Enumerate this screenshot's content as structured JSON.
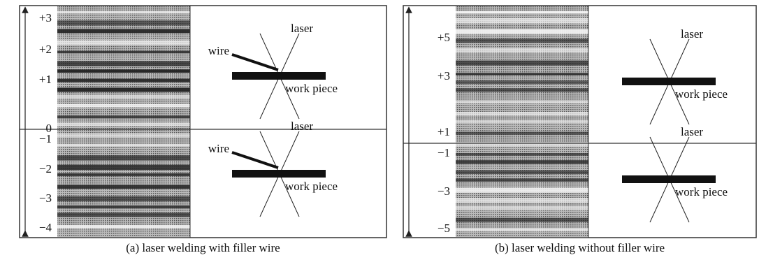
{
  "panels": [
    {
      "caption": "(a)  laser welding with filler wire",
      "ticks": [
        "+3",
        "+2",
        "+1",
        "0",
        "−1",
        "−2",
        "−3",
        "−4"
      ],
      "diagrams": [
        {
          "laser": "laser",
          "wire": "wire",
          "workpiece": "work piece"
        },
        {
          "laser": "laser",
          "wire": "wire",
          "workpiece": "work piece"
        }
      ]
    },
    {
      "caption": "(b)  laser welding without filler wire",
      "ticks": [
        "+5",
        "+3",
        "+1",
        "−1",
        "−3",
        "−5"
      ],
      "diagrams": [
        {
          "laser": "laser",
          "workpiece": "work piece"
        },
        {
          "laser": "laser",
          "workpiece": "work piece"
        }
      ]
    }
  ]
}
